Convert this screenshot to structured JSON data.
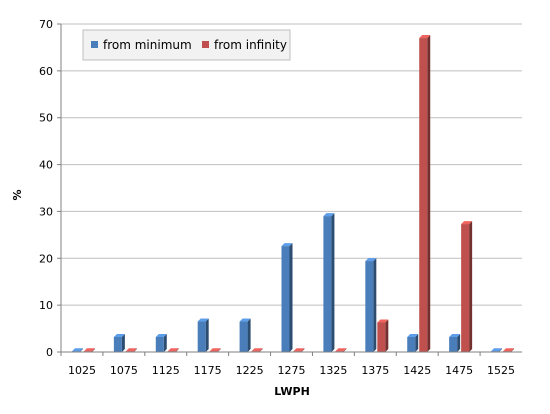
{
  "chart_data": {
    "type": "bar",
    "xlabel": "LWPH",
    "ylabel": "%",
    "ylim": [
      0,
      70
    ],
    "yticks": [
      0,
      10,
      20,
      30,
      40,
      50,
      60,
      70
    ],
    "grid": true,
    "legend_position": "top-left",
    "categories": [
      "1025",
      "1075",
      "1125",
      "1175",
      "1225",
      "1275",
      "1325",
      "1375",
      "1425",
      "1475",
      "1525"
    ],
    "series": [
      {
        "name": "from minimum",
        "color": "#4a7ebb",
        "values": [
          0,
          3.2,
          3.2,
          6.5,
          6.5,
          22.6,
          29.0,
          19.4,
          3.2,
          3.2,
          0
        ]
      },
      {
        "name": "from infinity",
        "color": "#c0504d",
        "values": [
          0,
          0,
          0,
          0,
          0,
          0,
          0,
          6.3,
          67.0,
          27.3,
          0
        ]
      }
    ]
  }
}
